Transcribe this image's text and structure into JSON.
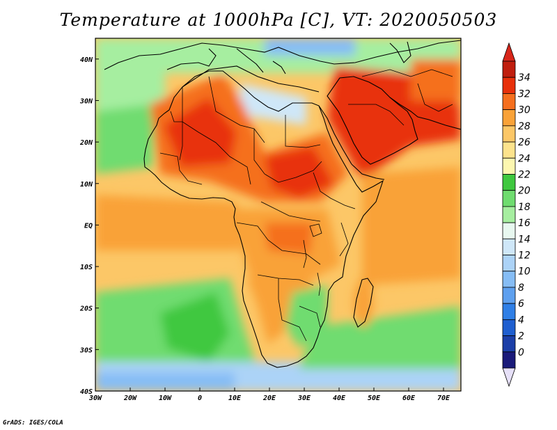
{
  "title": "Temperature at 1000hPa [C], VT: 2020050503",
  "credit": "GrADS: IGES/COLA",
  "map": {
    "lon_range": [
      -30,
      75
    ],
    "lat_range": [
      -40,
      45
    ],
    "lon_ticks": [
      {
        "value": -30,
        "label": "30W"
      },
      {
        "value": -20,
        "label": "20W"
      },
      {
        "value": -10,
        "label": "10W"
      },
      {
        "value": 0,
        "label": "0"
      },
      {
        "value": 10,
        "label": "10E"
      },
      {
        "value": 20,
        "label": "20E"
      },
      {
        "value": 30,
        "label": "30E"
      },
      {
        "value": 40,
        "label": "40E"
      },
      {
        "value": 50,
        "label": "50E"
      },
      {
        "value": 60,
        "label": "60E"
      },
      {
        "value": 70,
        "label": "70E"
      }
    ],
    "lat_ticks": [
      {
        "value": 40,
        "label": "40N"
      },
      {
        "value": 30,
        "label": "30N"
      },
      {
        "value": 20,
        "label": "20N"
      },
      {
        "value": 10,
        "label": "10N"
      },
      {
        "value": 0,
        "label": "EQ"
      },
      {
        "value": -10,
        "label": "10S"
      },
      {
        "value": -20,
        "label": "20S"
      },
      {
        "value": -30,
        "label": "30S"
      },
      {
        "value": -40,
        "label": "40S"
      }
    ]
  },
  "colorbar": {
    "levels": [
      0,
      2,
      4,
      6,
      8,
      10,
      12,
      14,
      16,
      18,
      20,
      22,
      24,
      26,
      28,
      30,
      32,
      34
    ],
    "colors": [
      "#1a1a7a",
      "#1b3fa8",
      "#1f5fd0",
      "#2f7fe6",
      "#5ea0ef",
      "#86bdf5",
      "#acd3f7",
      "#cfe7f8",
      "#e8f8f0",
      "#a6eea0",
      "#6fdc6f",
      "#3fc83f",
      "#fdf7b0",
      "#fde38c",
      "#fcc767",
      "#f9a238",
      "#f56f1e",
      "#e8300a",
      "#c01e0e"
    ],
    "under_color": "#e6e0f8",
    "over_color": "#d8261a"
  }
}
